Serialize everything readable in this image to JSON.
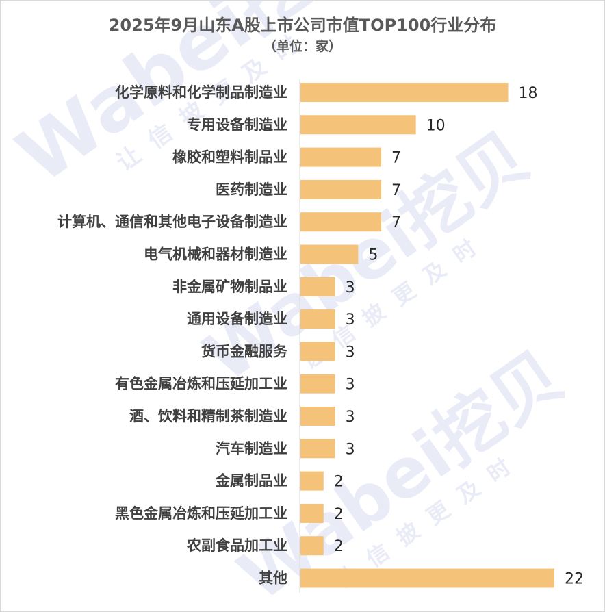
{
  "watermark": {
    "brand_latin": "Wabei",
    "brand_cjk": "挖贝",
    "slogan": "让信披更及时",
    "color": "#b9bfe8"
  },
  "chart_data": {
    "type": "bar",
    "orientation": "horizontal",
    "title": "2025年9月山东A股上市公司市值TOP100行业分布",
    "subtitle": "（单位：家）",
    "xlabel": "",
    "ylabel": "",
    "bar_color": "#f5c27a",
    "grid": false,
    "legend": "none",
    "xlim": [
      0,
      22
    ],
    "categories": [
      "化学原料和化学制品制造业",
      "专用设备制造业",
      "橡胶和塑料制品业",
      "医药制造业",
      "计算机、通信和其他电子设备制造业",
      "电气机械和器材制造业",
      "非金属矿物制品业",
      "通用设备制造业",
      "货币金融服务",
      "有色金属冶炼和压延加工业",
      "酒、饮料和精制茶制造业",
      "汽车制造业",
      "金属制品业",
      "黑色金属冶炼和压延加工业",
      "农副食品加工业",
      "其他"
    ],
    "values": [
      18,
      10,
      7,
      7,
      7,
      5,
      3,
      3,
      3,
      3,
      3,
      3,
      2,
      2,
      2,
      22
    ],
    "value_labels": [
      "18",
      "10",
      "7",
      "7",
      "7",
      "5",
      "3",
      "3",
      "3",
      "3",
      "3",
      "3",
      "2",
      "2",
      "2",
      "22"
    ]
  }
}
